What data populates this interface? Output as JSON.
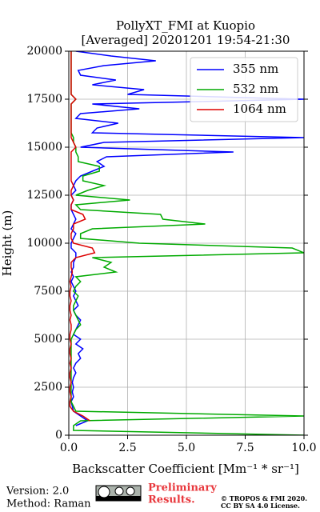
{
  "chart_data": {
    "type": "line",
    "orientation": "horizontal",
    "title": [
      "PollyXT_FMI at Kuopio",
      "[Averaged] 20201201 19:54-21:30"
    ],
    "xlabel": "Backscatter Coefficient [Mm⁻¹ * sr⁻¹]",
    "ylabel": "Height (m)",
    "xlim": [
      0,
      10
    ],
    "ylim": [
      0,
      20000
    ],
    "xticks": [
      {
        "value": 0,
        "label": "0.0"
      },
      2.5,
      {
        "value": 5,
        "label": "5.0"
      },
      7.5,
      {
        "value": 10,
        "label": "10.0"
      }
    ],
    "yticks": [
      0,
      2500,
      5000,
      7500,
      10000,
      12500,
      15000,
      17500,
      20000
    ],
    "grid": true,
    "legend": "upper right",
    "heights": [
      0,
      250,
      500,
      750,
      1000,
      1250,
      1500,
      1750,
      2000,
      2250,
      2500,
      2750,
      3000,
      3250,
      3500,
      3750,
      4000,
      4250,
      4500,
      4750,
      5000,
      5250,
      5500,
      5750,
      6000,
      6250,
      6500,
      6750,
      7000,
      7250,
      7500,
      7750,
      8000,
      8250,
      8500,
      8750,
      9000,
      9250,
      9500,
      9750,
      10000,
      10250,
      10500,
      10750,
      11000,
      11250,
      11500,
      11750,
      12000,
      12250,
      12500,
      12750,
      13000,
      13250,
      13500,
      13750,
      14000,
      14250,
      14500,
      14750,
      15000,
      15250,
      15500,
      15750,
      16000,
      16250,
      16500,
      16750,
      17000,
      17250,
      17500,
      17750,
      18000,
      18250,
      18500,
      18750,
      19000,
      19250,
      19500,
      19750,
      20000
    ],
    "series": [
      {
        "name": "355 nm",
        "color": "#0000ff",
        "values": [
          null,
          null,
          0.3,
          0.8,
          0.5,
          0.2,
          0.15,
          0.1,
          0.2,
          0.15,
          0.2,
          0.15,
          0.2,
          0.3,
          0.2,
          0.3,
          0.5,
          0.4,
          0.6,
          0.3,
          0.5,
          0.2,
          0.3,
          0.4,
          0.5,
          0.3,
          0.2,
          0.4,
          0.3,
          0.2,
          0.3,
          0.2,
          0.1,
          0.2,
          0.1,
          0.2,
          0.2,
          0.3,
          0.3,
          0.1,
          0.1,
          0.2,
          0.3,
          0.1,
          0.2,
          0.3,
          0.2,
          0.1,
          0.1,
          0.2,
          0.1,
          0.3,
          0.2,
          0.3,
          0.5,
          1.0,
          1.5,
          1.2,
          1.6,
          7.0,
          0.5,
          1.5,
          10,
          1.0,
          1.2,
          2.1,
          0.3,
          0.5,
          3.0,
          1.0,
          10,
          2.5,
          3.2,
          1.0,
          2.0,
          0.5,
          0.4,
          1.5,
          3.7,
          1.8,
          0.3
        ]
      },
      {
        "name": "532 nm",
        "color": "#00aa00",
        "values": [
          10,
          0.2,
          0.2,
          0.5,
          10,
          0.3,
          0.2,
          0.1,
          0.1,
          0.1,
          0.1,
          0.1,
          0.1,
          0.1,
          0.1,
          0.1,
          0.1,
          0.1,
          0.1,
          0.1,
          0.1,
          0.2,
          0.3,
          0.5,
          0.4,
          0.3,
          0.2,
          0.2,
          0.3,
          0.4,
          0.2,
          0.3,
          0.5,
          0.3,
          2.0,
          1.5,
          1.8,
          1.0,
          10,
          9.5,
          3.0,
          0.5,
          0.5,
          1.0,
          5.8,
          4.0,
          3.9,
          0.5,
          0.3,
          2.6,
          0.3,
          0.8,
          1.5,
          0.6,
          0.6,
          1.3,
          1.3,
          0.4,
          0.4,
          0.3,
          0.3,
          0.2,
          0.2,
          0.1,
          0.1,
          0.1,
          0.1,
          0.1,
          0.1,
          0.1,
          0.3,
          0.1,
          0.1,
          0.1,
          0.1,
          0.1,
          0.1,
          0.1,
          0.1,
          0.1,
          0.1
        ]
      },
      {
        "name": "1064 nm",
        "color": "#dd0000",
        "values": [
          null,
          null,
          null,
          0.9,
          0.6,
          0.2,
          0.05,
          0.05,
          0.1,
          0.05,
          0.05,
          0.1,
          0.05,
          0.05,
          0.1,
          0.05,
          0.1,
          0.05,
          0.05,
          0.1,
          0.05,
          0.05,
          0.1,
          0.1,
          0.05,
          0.1,
          0.05,
          0.05,
          0.1,
          0.05,
          0.05,
          0.1,
          0.05,
          0.1,
          0.15,
          0.1,
          0.1,
          0.3,
          1.1,
          1.0,
          0.2,
          0.1,
          0.1,
          0.2,
          0.2,
          0.7,
          0.6,
          0.1,
          0.1,
          0.2,
          0.1,
          0.1,
          0.2,
          0.1,
          0.1,
          0.1,
          0.1,
          0.1,
          0.1,
          0.1,
          0.3,
          0.2,
          0.1,
          0.1,
          0.1,
          0.1,
          0.1,
          0.1,
          0.1,
          0.1,
          0.3,
          0.1,
          0.1,
          0.1,
          0.1,
          0.1,
          0.1,
          0.1,
          0.1,
          0.1,
          0.1
        ]
      }
    ]
  },
  "footer": {
    "version": "Version: 2.0",
    "method": "Method: Raman",
    "preliminary": [
      "Preliminary",
      "Results."
    ],
    "copyright": [
      "© TROPOS & FMI 2020.",
      "CC BY SA 4.0 License."
    ]
  }
}
